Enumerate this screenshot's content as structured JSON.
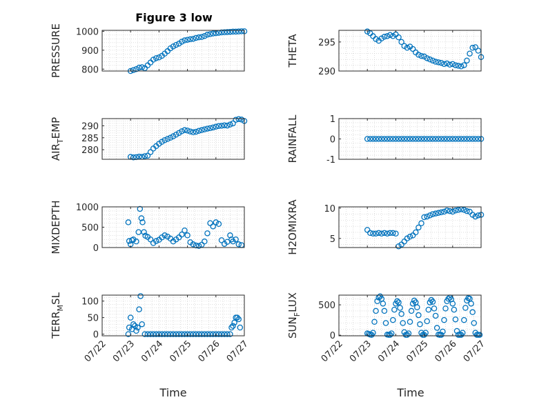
{
  "title": "Figure 3 low",
  "colors": {
    "marker": "#0072BD",
    "axis": "#262626",
    "grid": "#c8c8c8"
  },
  "x_ticks": [
    "07/22",
    "07/23",
    "07/24",
    "07/25",
    "07/26",
    "07/27"
  ],
  "x_label": "Time",
  "chart_data": [
    {
      "type": "scatter",
      "ylabel": "PRESSURE",
      "ylim": [
        790,
        1005
      ],
      "yticks": [
        800,
        900,
        1000
      ],
      "ytick_labels": [
        "800",
        "900",
        "1000"
      ],
      "x": [
        1.0,
        1.1,
        1.2,
        1.3,
        1.4,
        1.5,
        1.6,
        1.7,
        1.8,
        1.9,
        2.0,
        2.1,
        2.2,
        2.3,
        2.4,
        2.5,
        2.6,
        2.7,
        2.8,
        2.9,
        3.0,
        3.1,
        3.2,
        3.3,
        3.4,
        3.5,
        3.6,
        3.7,
        3.8,
        3.9,
        4.0,
        4.1,
        4.2,
        4.3,
        4.4,
        4.5,
        4.6,
        4.7,
        4.8,
        4.9,
        5.0
      ],
      "values": [
        790,
        795,
        800,
        808,
        810,
        805,
        820,
        835,
        850,
        858,
        862,
        870,
        882,
        895,
        910,
        920,
        928,
        935,
        945,
        952,
        955,
        958,
        960,
        965,
        968,
        970,
        975,
        982,
        985,
        988,
        990,
        992,
        994,
        995,
        996,
        997,
        998,
        998,
        999,
        1000,
        1000
      ]
    },
    {
      "type": "scatter",
      "ylabel": "THETA",
      "ylim": [
        290,
        297
      ],
      "yticks": [
        290,
        295
      ],
      "ytick_labels": [
        "290",
        "295"
      ],
      "x": [
        1.0,
        1.1,
        1.2,
        1.3,
        1.4,
        1.5,
        1.6,
        1.7,
        1.8,
        1.9,
        2.0,
        2.1,
        2.2,
        2.3,
        2.4,
        2.5,
        2.6,
        2.7,
        2.8,
        2.9,
        3.0,
        3.1,
        3.2,
        3.3,
        3.4,
        3.5,
        3.6,
        3.7,
        3.8,
        3.9,
        4.0,
        4.1,
        4.2,
        4.3,
        4.4,
        4.5,
        4.6,
        4.7,
        4.8,
        4.9,
        5.0
      ],
      "values": [
        296.8,
        296.5,
        296.0,
        295.5,
        295.2,
        295.6,
        295.9,
        296.0,
        296.2,
        296.0,
        296.3,
        295.8,
        295.0,
        294.3,
        294.0,
        294.2,
        293.8,
        293.2,
        292.8,
        292.6,
        292.5,
        292.2,
        292.0,
        291.8,
        291.6,
        291.5,
        291.4,
        291.2,
        291.3,
        291.1,
        291.2,
        291.0,
        290.9,
        290.8,
        291.0,
        291.8,
        293.0,
        294.0,
        294.1,
        293.5,
        292.4
      ]
    },
    {
      "type": "scatter",
      "ylabel": "AIR_TEMP",
      "ylim": [
        276,
        293
      ],
      "yticks": [
        280,
        285,
        290
      ],
      "ytick_labels": [
        "280",
        "285",
        "290"
      ],
      "x": [
        1.0,
        1.1,
        1.2,
        1.3,
        1.4,
        1.5,
        1.6,
        1.7,
        1.8,
        1.9,
        2.0,
        2.1,
        2.2,
        2.3,
        2.4,
        2.5,
        2.6,
        2.7,
        2.8,
        2.9,
        3.0,
        3.1,
        3.2,
        3.3,
        3.4,
        3.5,
        3.6,
        3.7,
        3.8,
        3.9,
        4.0,
        4.1,
        4.2,
        4.3,
        4.4,
        4.5,
        4.6,
        4.7,
        4.8,
        4.9,
        5.0
      ],
      "values": [
        277.0,
        276.8,
        276.9,
        277.1,
        277.0,
        277.3,
        277.5,
        279.0,
        280.5,
        281.5,
        282.5,
        283.3,
        284.0,
        284.5,
        285.0,
        285.6,
        286.3,
        287.0,
        287.7,
        288.2,
        288.0,
        287.6,
        287.3,
        287.5,
        287.9,
        288.2,
        288.5,
        288.8,
        289.0,
        289.3,
        289.6,
        289.9,
        290.0,
        290.2,
        290.1,
        290.5,
        291.0,
        292.5,
        292.8,
        292.6,
        292.0
      ]
    },
    {
      "type": "scatter",
      "ylabel": "RAINFALL",
      "ylim": [
        -1,
        1
      ],
      "yticks": [
        -1,
        0,
        1
      ],
      "ytick_labels": [
        "-1",
        "0",
        "1"
      ],
      "x": [
        1.0,
        1.1,
        1.2,
        1.3,
        1.4,
        1.5,
        1.6,
        1.7,
        1.8,
        1.9,
        2.0,
        2.1,
        2.2,
        2.3,
        2.4,
        2.5,
        2.6,
        2.7,
        2.8,
        2.9,
        3.0,
        3.1,
        3.2,
        3.3,
        3.4,
        3.5,
        3.6,
        3.7,
        3.8,
        3.9,
        4.0,
        4.1,
        4.2,
        4.3,
        4.4,
        4.5,
        4.6,
        4.7,
        4.8,
        4.9,
        5.0
      ],
      "values": [
        0,
        0,
        0,
        0,
        0,
        0,
        0,
        0,
        0,
        0,
        0,
        0,
        0,
        0,
        0,
        0,
        0,
        0,
        0,
        0,
        0,
        0,
        0,
        0,
        0,
        0,
        0,
        0,
        0,
        0,
        0,
        0,
        0,
        0,
        0,
        0,
        0,
        0,
        0,
        0,
        0
      ]
    },
    {
      "type": "scatter",
      "ylabel": "MIXDEPTH",
      "ylim": [
        0,
        1000
      ],
      "yticks": [
        0,
        500,
        1000
      ],
      "ytick_labels": [
        "0",
        "500",
        "1000"
      ],
      "x": [
        0.92,
        0.95,
        1.0,
        1.05,
        1.1,
        1.2,
        1.28,
        1.33,
        1.38,
        1.42,
        1.47,
        1.52,
        1.6,
        1.7,
        1.8,
        1.9,
        2.0,
        2.1,
        2.2,
        2.3,
        2.4,
        2.5,
        2.6,
        2.7,
        2.8,
        2.9,
        3.0,
        3.1,
        3.2,
        3.3,
        3.4,
        3.5,
        3.6,
        3.7,
        3.8,
        3.9,
        4.0,
        4.1,
        4.2,
        4.3,
        4.4,
        4.5,
        4.55,
        4.6,
        4.7,
        4.8,
        4.9
      ],
      "values": [
        620,
        160,
        80,
        180,
        200,
        150,
        380,
        950,
        720,
        620,
        380,
        290,
        260,
        200,
        110,
        160,
        190,
        250,
        300,
        270,
        220,
        150,
        200,
        250,
        320,
        420,
        300,
        130,
        80,
        50,
        40,
        70,
        150,
        350,
        600,
        520,
        620,
        580,
        180,
        90,
        140,
        300,
        200,
        150,
        200,
        80,
        60
      ]
    },
    {
      "type": "scatter",
      "ylabel": "H2OMIXRA",
      "ylim": [
        3.5,
        10.2
      ],
      "yticks": [
        5,
        10
      ],
      "ytick_labels": [
        "5",
        "10"
      ],
      "x": [
        1.0,
        1.1,
        1.2,
        1.3,
        1.4,
        1.5,
        1.6,
        1.7,
        1.8,
        1.9,
        2.0,
        2.1,
        2.2,
        2.3,
        2.4,
        2.5,
        2.6,
        2.7,
        2.8,
        2.9,
        3.0,
        3.1,
        3.2,
        3.3,
        3.4,
        3.5,
        3.6,
        3.7,
        3.8,
        3.9,
        4.0,
        4.1,
        4.2,
        4.3,
        4.4,
        4.5,
        4.6,
        4.7,
        4.8,
        4.9,
        5.0
      ],
      "values": [
        6.4,
        5.9,
        5.8,
        5.8,
        5.9,
        5.8,
        5.9,
        5.8,
        5.9,
        5.9,
        5.8,
        3.7,
        4.0,
        4.5,
        5.0,
        5.3,
        5.5,
        6.0,
        6.8,
        7.5,
        8.5,
        8.6,
        8.8,
        9.0,
        9.1,
        9.2,
        9.3,
        9.4,
        9.6,
        9.5,
        9.4,
        9.6,
        9.7,
        9.8,
        9.7,
        9.5,
        9.4,
        8.9,
        8.6,
        8.8,
        8.9
      ]
    },
    {
      "type": "scatter",
      "ylabel": "TERR_MSL",
      "ylim": [
        -5,
        118
      ],
      "yticks": [
        0,
        50,
        100
      ],
      "ytick_labels": [
        "0",
        "50",
        "100"
      ],
      "x": [
        0.92,
        0.95,
        1.0,
        1.05,
        1.1,
        1.15,
        1.2,
        1.25,
        1.3,
        1.35,
        1.4,
        1.5,
        1.6,
        1.7,
        1.8,
        1.9,
        2.0,
        2.1,
        2.2,
        2.3,
        2.4,
        2.5,
        2.6,
        2.7,
        2.8,
        2.9,
        3.0,
        3.1,
        3.2,
        3.3,
        3.4,
        3.5,
        3.6,
        3.7,
        3.8,
        3.9,
        4.0,
        4.1,
        4.2,
        4.3,
        4.4,
        4.5,
        4.55,
        4.6,
        4.65,
        4.7,
        4.75,
        4.8,
        4.85
      ],
      "values": [
        0,
        20,
        50,
        15,
        30,
        25,
        10,
        20,
        75,
        115,
        30,
        0,
        0,
        0,
        0,
        0,
        0,
        0,
        0,
        0,
        0,
        0,
        0,
        0,
        0,
        0,
        0,
        0,
        0,
        0,
        0,
        0,
        0,
        0,
        0,
        0,
        0,
        0,
        0,
        0,
        0,
        0,
        20,
        25,
        35,
        50,
        50,
        45,
        20
      ]
    },
    {
      "type": "scatter",
      "ylabel": "SUN_FLUX",
      "ylim": [
        -10,
        660
      ],
      "yticks": [
        0,
        500
      ],
      "ytick_labels": [
        "0",
        "500"
      ],
      "x": [
        1.0,
        1.05,
        1.1,
        1.15,
        1.2,
        1.25,
        1.3,
        1.35,
        1.4,
        1.45,
        1.5,
        1.55,
        1.6,
        1.65,
        1.7,
        1.75,
        1.8,
        1.85,
        1.9,
        1.95,
        2.0,
        2.05,
        2.1,
        2.15,
        2.2,
        2.25,
        2.3,
        2.35,
        2.4,
        2.45,
        2.5,
        2.55,
        2.6,
        2.65,
        2.7,
        2.75,
        2.8,
        2.85,
        2.9,
        2.95,
        3.0,
        3.05,
        3.1,
        3.15,
        3.2,
        3.25,
        3.3,
        3.35,
        3.4,
        3.45,
        3.5,
        3.55,
        3.6,
        3.65,
        3.7,
        3.75,
        3.8,
        3.85,
        3.9,
        3.95,
        4.0,
        4.05,
        4.1,
        4.15,
        4.2,
        4.25,
        4.3,
        4.35,
        4.4,
        4.45,
        4.5,
        4.55,
        4.6,
        4.65,
        4.7,
        4.75,
        4.8,
        4.85,
        4.9,
        4.95
      ],
      "values": [
        30,
        20,
        10,
        5,
        40,
        220,
        400,
        560,
        620,
        640,
        600,
        520,
        400,
        200,
        10,
        5,
        5,
        30,
        250,
        420,
        520,
        560,
        540,
        450,
        350,
        200,
        50,
        5,
        5,
        30,
        220,
        400,
        520,
        570,
        540,
        460,
        330,
        180,
        40,
        5,
        5,
        40,
        230,
        420,
        540,
        580,
        550,
        440,
        320,
        120,
        10,
        5,
        5,
        60,
        250,
        440,
        560,
        600,
        620,
        590,
        520,
        420,
        260,
        70,
        5,
        5,
        5,
        40,
        250,
        450,
        570,
        610,
        600,
        520,
        380,
        200,
        40,
        5,
        5,
        5
      ]
    }
  ]
}
